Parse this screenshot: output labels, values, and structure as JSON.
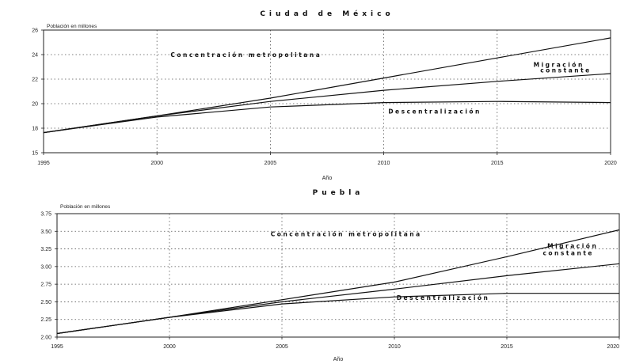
{
  "chart_data": [
    {
      "type": "line",
      "title": "Ciudad de México",
      "ylabel": "Población en millones",
      "xlabel": "Año",
      "xlim": [
        1995,
        2020
      ],
      "ylim": [
        15,
        26
      ],
      "x_ticks": [
        "1995",
        "2000",
        "2005",
        "2010",
        "2015",
        "2020"
      ],
      "y_ticks": [
        "15",
        "18",
        "20",
        "22",
        "24",
        "26"
      ],
      "grid": true,
      "series": [
        {
          "name": "Concentración metropolitana",
          "x": [
            1995,
            2000,
            2005,
            2010,
            2015,
            2020
          ],
          "y": [
            16.8,
            18.3,
            19.9,
            21.7,
            23.5,
            25.3
          ]
        },
        {
          "name": "Migración constante",
          "x": [
            1995,
            2000,
            2005,
            2010,
            2015,
            2020
          ],
          "y": [
            16.8,
            18.3,
            19.6,
            20.6,
            21.4,
            22.1
          ]
        },
        {
          "name": "Descentralización",
          "x": [
            1995,
            2000,
            2005,
            2010,
            2015,
            2020
          ],
          "y": [
            16.8,
            18.2,
            19.1,
            19.5,
            19.6,
            19.5
          ]
        }
      ],
      "annotations": [
        {
          "text": "Concentración metropolitana",
          "x": 2000.6,
          "y": 23.6
        },
        {
          "text": "Migración",
          "x": 2016.6,
          "y": 22.7
        },
        {
          "text": "constante",
          "x": 2016.9,
          "y": 22.2
        },
        {
          "text": "Descentralización",
          "x": 2010.2,
          "y": 18.5
        }
      ]
    },
    {
      "type": "line",
      "title": "Puebla",
      "ylabel": "Población en millones",
      "xlabel": "Año",
      "xlim": [
        1995,
        2020
      ],
      "ylim": [
        2.0,
        3.75
      ],
      "x_ticks": [
        "1995",
        "2000",
        "2005",
        "2010",
        "2015",
        "2020"
      ],
      "y_ticks": [
        "2.00",
        "2.25",
        "2.50",
        "2.75",
        "3.00",
        "3.25",
        "3.50",
        "3.75"
      ],
      "grid": true,
      "series": [
        {
          "name": "Concentración metropolitana",
          "x": [
            1995,
            2000,
            2005,
            2010,
            2015,
            2020
          ],
          "y": [
            2.05,
            2.28,
            2.53,
            2.78,
            3.14,
            3.52
          ]
        },
        {
          "name": "Migración constante",
          "x": [
            1995,
            2000,
            2005,
            2010,
            2015,
            2020
          ],
          "y": [
            2.05,
            2.28,
            2.5,
            2.68,
            2.87,
            3.04
          ]
        },
        {
          "name": "Descentralización",
          "x": [
            1995,
            2000,
            2005,
            2010,
            2015,
            2020
          ],
          "y": [
            2.05,
            2.28,
            2.47,
            2.57,
            2.62,
            2.62
          ]
        }
      ],
      "annotations": [
        {
          "text": "Concentración metropolitana",
          "x": 2004.5,
          "y": 3.43
        },
        {
          "text": "Migración",
          "x": 2016.8,
          "y": 3.26
        },
        {
          "text": "constante",
          "x": 2016.6,
          "y": 3.16
        },
        {
          "text": "Descentralización",
          "x": 2010.1,
          "y": 2.53
        }
      ]
    }
  ]
}
